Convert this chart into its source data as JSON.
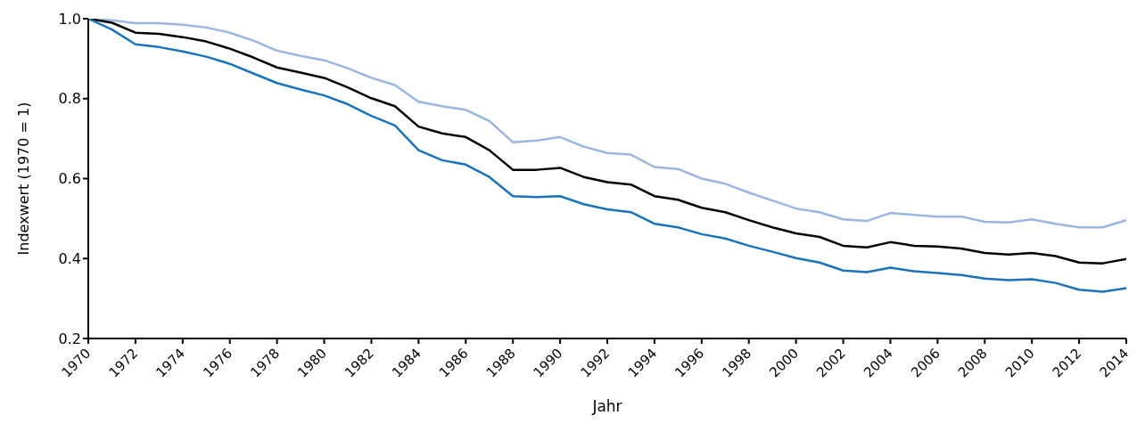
{
  "chart_data": {
    "type": "line",
    "xlabel": "Jahr",
    "ylabel": "Indexwert (1970 = 1)",
    "x": [
      1970,
      1971,
      1972,
      1973,
      1974,
      1975,
      1976,
      1977,
      1978,
      1979,
      1980,
      1981,
      1982,
      1983,
      1984,
      1985,
      1986,
      1987,
      1988,
      1989,
      1990,
      1991,
      1992,
      1993,
      1994,
      1995,
      1996,
      1997,
      1998,
      1999,
      2000,
      2001,
      2002,
      2003,
      2004,
      2005,
      2006,
      2007,
      2008,
      2009,
      2010,
      2011,
      2012,
      2013,
      2014
    ],
    "series": [
      {
        "color": "#9bb5e0",
        "values": [
          1.0,
          0.996,
          0.989,
          0.989,
          0.985,
          0.978,
          0.965,
          0.945,
          0.92,
          0.907,
          0.896,
          0.876,
          0.852,
          0.834,
          0.792,
          0.781,
          0.772,
          0.744,
          0.691,
          0.695,
          0.704,
          0.68,
          0.664,
          0.66,
          0.629,
          0.624,
          0.6,
          0.587,
          0.565,
          0.545,
          0.525,
          0.516,
          0.498,
          0.494,
          0.514,
          0.509,
          0.505,
          0.505,
          0.492,
          0.49,
          0.498,
          0.487,
          0.478,
          0.478,
          0.496
        ]
      },
      {
        "color": "#000000",
        "values": [
          1.0,
          0.99,
          0.965,
          0.962,
          0.954,
          0.943,
          0.925,
          0.903,
          0.878,
          0.865,
          0.852,
          0.828,
          0.801,
          0.781,
          0.73,
          0.713,
          0.704,
          0.671,
          0.622,
          0.622,
          0.627,
          0.604,
          0.591,
          0.585,
          0.556,
          0.547,
          0.527,
          0.516,
          0.496,
          0.478,
          0.463,
          0.454,
          0.432,
          0.428,
          0.441,
          0.432,
          0.43,
          0.425,
          0.414,
          0.41,
          0.414,
          0.406,
          0.39,
          0.388,
          0.399
        ]
      },
      {
        "color": "#1a73ba",
        "values": [
          1.0,
          0.973,
          0.936,
          0.929,
          0.918,
          0.905,
          0.887,
          0.863,
          0.839,
          0.823,
          0.808,
          0.786,
          0.757,
          0.733,
          0.671,
          0.646,
          0.635,
          0.604,
          0.556,
          0.554,
          0.556,
          0.536,
          0.523,
          0.516,
          0.487,
          0.478,
          0.461,
          0.45,
          0.432,
          0.417,
          0.401,
          0.39,
          0.37,
          0.366,
          0.377,
          0.368,
          0.364,
          0.359,
          0.35,
          0.346,
          0.348,
          0.339,
          0.322,
          0.317,
          0.326
        ]
      }
    ],
    "xlim": [
      1970,
      2014
    ],
    "xticks": [
      1970,
      1972,
      1974,
      1976,
      1978,
      1980,
      1982,
      1984,
      1986,
      1988,
      1990,
      1992,
      1994,
      1996,
      1998,
      2000,
      2002,
      2004,
      2006,
      2008,
      2010,
      2012,
      2014
    ],
    "ylim": [
      0.2,
      1.0
    ],
    "yticks": [
      {
        "value": 0.2,
        "label": "0.2"
      },
      {
        "value": 0.4,
        "label": "0.4"
      },
      {
        "value": 0.6,
        "label": "0.6"
      },
      {
        "value": 0.8,
        "label": "0.8"
      },
      {
        "value": 1.0,
        "label": "1.0"
      }
    ],
    "grid": false,
    "legend": false,
    "marker": "none",
    "line_style": "solid"
  }
}
